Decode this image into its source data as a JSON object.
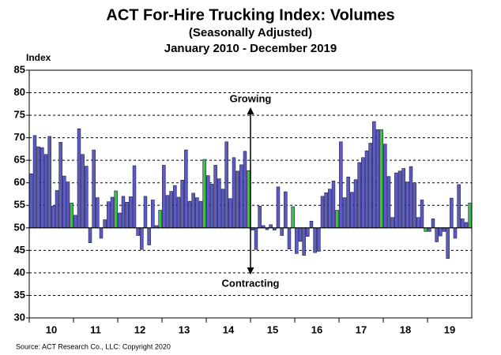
{
  "chart_data": {
    "type": "bar",
    "title": "ACT For-Hire Trucking Index: Volumes",
    "subtitle": "(Seasonally Adjusted)",
    "date_range": "January 2010 - December 2019",
    "y_axis_label": "Index",
    "source": "Source:  ACT Research Co., LLC: Copyright  2020",
    "annotations": {
      "up": "Growing",
      "down": "Contracting"
    },
    "year_labels": [
      "10",
      "11",
      "12",
      "13",
      "14",
      "15",
      "16",
      "17",
      "18",
      "19"
    ],
    "values": [
      62,
      70.5,
      68,
      67.8,
      66.3,
      70.3,
      54.8,
      58.3,
      69,
      61.5,
      60.2,
      55.5,
      52.8,
      72,
      66.3,
      63.7,
      46.7,
      67.3,
      56.7,
      47.7,
      51.8,
      55.8,
      56.8,
      58.2,
      53.3,
      57,
      55.7,
      56.9,
      63.8,
      48.3,
      45.2,
      57,
      46.2,
      56.2,
      50.5,
      53.9,
      63.9,
      57.2,
      58.1,
      59.4,
      56.8,
      60.6,
      67.3,
      55.9,
      57.7,
      56.7,
      55.9,
      65.2,
      61.6,
      59.7,
      63.9,
      60.9,
      58.6,
      69.1,
      56.5,
      65.6,
      62.6,
      64,
      67,
      62.7,
      49.5,
      45.2,
      54.8,
      50.5,
      49.6,
      50.7,
      49.5,
      59.1,
      48.3,
      58,
      45.3,
      54.7,
      44.3,
      47,
      43.9,
      48.1,
      51.5,
      44.5,
      44.8,
      57,
      57.8,
      58.6,
      60.4,
      53.9,
      69.1,
      56.7,
      61.3,
      57.9,
      60.7,
      64.5,
      65.6,
      67.1,
      68.8,
      73.6,
      71.8,
      71.8,
      68.6,
      61.4,
      52.3,
      62.2,
      62.6,
      63.2,
      60.2,
      63.6,
      60,
      52.3,
      56.2,
      49.2,
      49.2,
      52,
      46.9,
      48.2,
      49.2,
      43.2,
      56.6,
      47.7,
      59.6,
      52,
      51.2,
      55.5
    ],
    "baseline": 50,
    "color": "#5c5cc4",
    "december_color": "#2ecc2e",
    "ylim": [
      30,
      85
    ],
    "yticks": [
      30,
      35,
      40,
      45,
      50,
      55,
      60,
      65,
      70,
      75,
      80,
      85
    ],
    "grid": true
  }
}
